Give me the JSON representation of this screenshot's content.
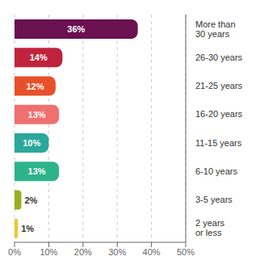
{
  "chart_data": {
    "type": "bar",
    "orientation": "horizontal",
    "categories": [
      "More than\n30 years",
      "26-30 years",
      "21-25 years",
      "16-20 years",
      "11-15 years",
      "6-10 years",
      "3-5 years",
      "2 years\nor less"
    ],
    "values": [
      36,
      14,
      12,
      13,
      10,
      13,
      2,
      1
    ],
    "value_labels": [
      "36%",
      "14%",
      "12%",
      "13%",
      "10%",
      "13%",
      "2%",
      "1%"
    ],
    "colors": [
      "#6b1050",
      "#c0233c",
      "#e8502a",
      "#f07070",
      "#2aa89a",
      "#2db38a",
      "#9aaf20",
      "#e8c830"
    ],
    "xlim": [
      0,
      50
    ],
    "xticks": [
      {
        "value": 0,
        "label": "0%"
      },
      {
        "value": 10,
        "label": "10%"
      },
      {
        "value": 20,
        "label": "20%"
      },
      {
        "value": 30,
        "label": "30%"
      },
      {
        "value": 40,
        "label": "40%"
      },
      {
        "value": 50,
        "label": "50%"
      }
    ],
    "grid": true,
    "data_labels": true
  }
}
